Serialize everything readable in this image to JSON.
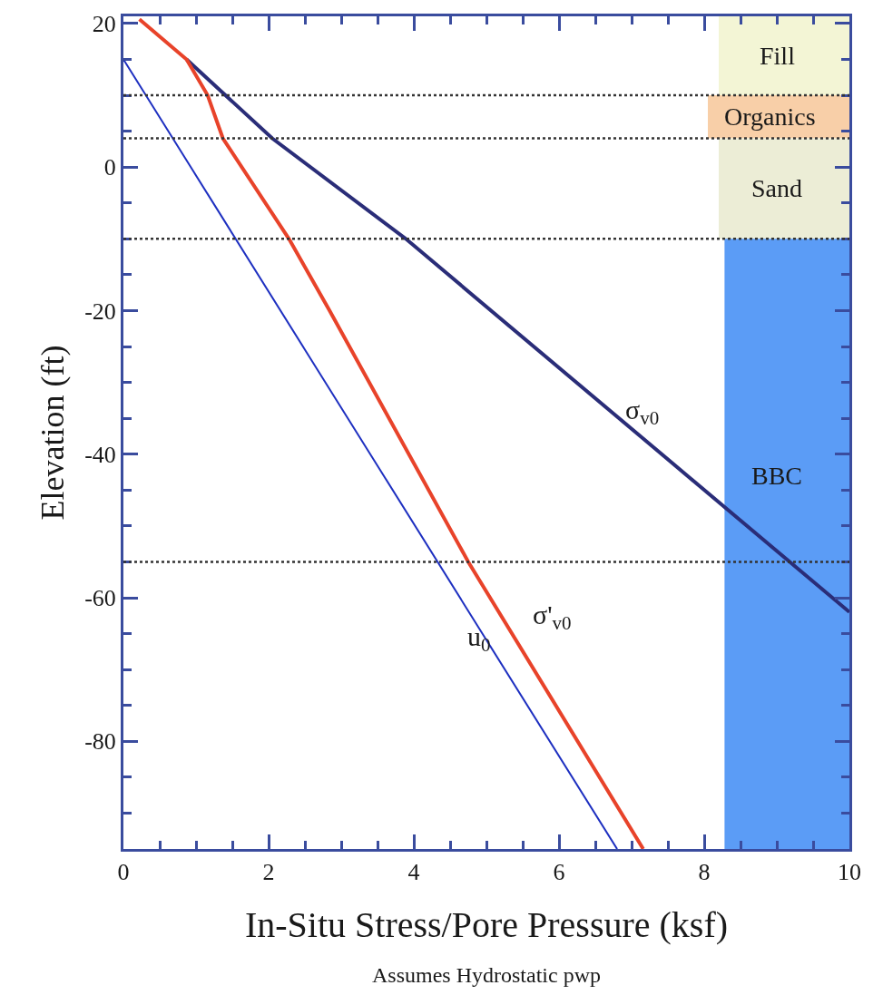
{
  "chart_data": {
    "type": "line",
    "xlabel": "In-Situ Stress/Pore Pressure (ksf)",
    "ylabel": "Elevation (ft)",
    "xlim": [
      0,
      10
    ],
    "ylim": [
      -95,
      21
    ],
    "xticks": [
      0,
      {
        "value": 0.5,
        "label": null
      },
      {
        "value": 1,
        "label": null
      },
      {
        "value": 1.5,
        "label": null
      },
      2,
      {
        "value": 2.5,
        "label": null
      },
      {
        "value": 3,
        "label": null
      },
      {
        "value": 3.5,
        "label": null
      },
      4,
      {
        "value": 4.5,
        "label": null
      },
      {
        "value": 5,
        "label": null
      },
      {
        "value": 5.5,
        "label": null
      },
      6,
      {
        "value": 6.5,
        "label": null
      },
      {
        "value": 7,
        "label": null
      },
      {
        "value": 7.5,
        "label": null
      },
      8,
      {
        "value": 8.5,
        "label": null
      },
      {
        "value": 9,
        "label": null
      },
      {
        "value": 9.5,
        "label": null
      },
      10
    ],
    "yticks": [
      20,
      {
        "value": 15,
        "label": null
      },
      {
        "value": 10,
        "label": null
      },
      {
        "value": 5,
        "label": null
      },
      0,
      {
        "value": -5,
        "label": null
      },
      {
        "value": -10,
        "label": null
      },
      {
        "value": -15,
        "label": null
      },
      -20,
      {
        "value": -25,
        "label": null
      },
      {
        "value": -30,
        "label": null
      },
      {
        "value": -35,
        "label": null
      },
      -40,
      {
        "value": -45,
        "label": null
      },
      {
        "value": -50,
        "label": null
      },
      {
        "value": -55,
        "label": null
      },
      -60,
      {
        "value": -65,
        "label": null
      },
      {
        "value": -70,
        "label": null
      },
      {
        "value": -75,
        "label": null
      },
      -80,
      {
        "value": -85,
        "label": null
      },
      {
        "value": -90,
        "label": null
      }
    ],
    "grid": false,
    "marker": "none",
    "line_style": "solid",
    "series": [
      {
        "color": "#2a2d78",
        "x": [
          0.87,
          2.05,
          3.89,
          10
        ],
        "values": [
          15,
          4,
          -10,
          -62
        ]
      },
      {
        "color": "#e8432a",
        "x": [
          0.22,
          0.87,
          1.16,
          1.37,
          2.28,
          2.84,
          4.75,
          7.16
        ],
        "values": [
          20.6,
          15,
          10,
          4,
          -10,
          -20,
          -55,
          -95
        ]
      },
      {
        "color": "#1d2fc0",
        "x": [
          0,
          6.8
        ],
        "values": [
          15,
          -95
        ]
      }
    ],
    "bands": [
      {
        "axis": "y",
        "from": 10,
        "to": 21,
        "label": "Fill",
        "color": "#f3f5d5"
      },
      {
        "axis": "y",
        "from": 4,
        "to": 10,
        "label": "Organics",
        "color": "#f8cfa8"
      },
      {
        "axis": "y",
        "from": -10,
        "to": 4,
        "label": "Sand",
        "color": "#ecedd6"
      },
      {
        "axis": "y",
        "from": -95,
        "to": -10,
        "label": "BBC",
        "color": "#5b9cf6"
      }
    ],
    "ref_lines": [
      {
        "axis": "y",
        "value": 10,
        "color": "#333333",
        "line_style": "dotted"
      },
      {
        "axis": "y",
        "value": 4,
        "color": "#333333",
        "line_style": "dotted"
      },
      {
        "axis": "y",
        "value": -10,
        "color": "#333333",
        "line_style": "dotted"
      },
      {
        "axis": "y",
        "value": -55,
        "color": "#333333",
        "line_style": "dotted"
      }
    ],
    "annotations": [
      "σ$_{v0}$",
      "σ'$_{v0}$",
      "u$_{0}$",
      "Assumes Hydrostatic pwp"
    ]
  }
}
